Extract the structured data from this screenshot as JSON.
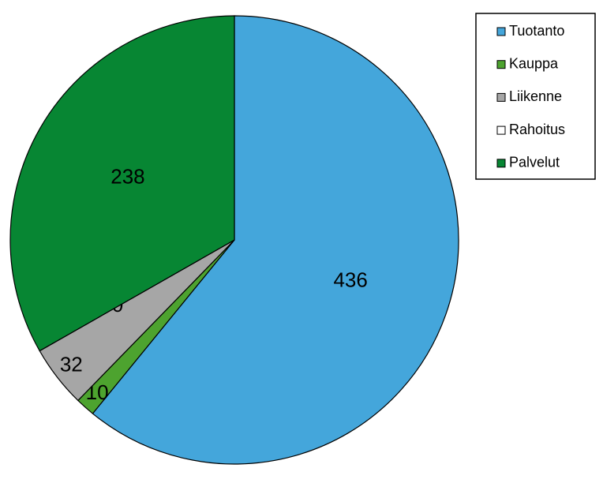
{
  "chart_data": {
    "type": "pie",
    "categories": [
      "Tuotanto",
      "Kauppa",
      "Liikenne",
      "Rahoitus",
      "Palvelut"
    ],
    "values": [
      436,
      10,
      32,
      0,
      238
    ],
    "colors": [
      "#44a6db",
      "#4da32f",
      "#a6a6a6",
      "#ffffff",
      "#078633"
    ],
    "legend": "right"
  }
}
